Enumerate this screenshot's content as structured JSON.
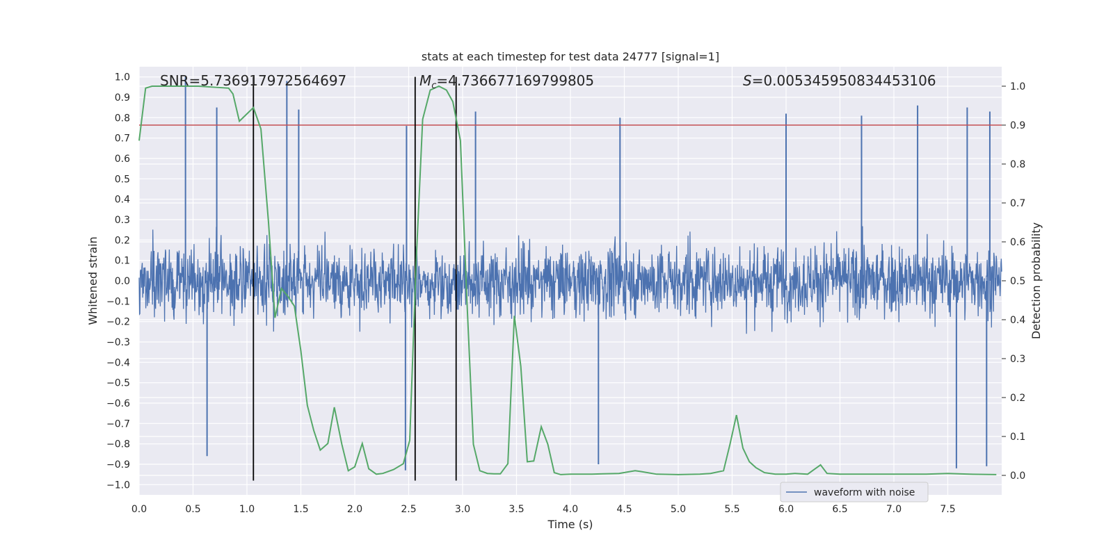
{
  "chart_data": {
    "type": "line",
    "title": "stats at each timestep for test data 24777 [signal=1]",
    "xlabel": "Time (s)",
    "ylabel": "Whitened strain",
    "ylabel_right": "Detection probability",
    "xlim": [
      0.0,
      8.0
    ],
    "ylim": [
      -1.05,
      1.05
    ],
    "ylim_right": [
      -0.05,
      1.05
    ],
    "x_ticks": [
      0.0,
      0.5,
      1.0,
      1.5,
      2.0,
      2.5,
      3.0,
      3.5,
      4.0,
      4.5,
      5.0,
      5.5,
      6.0,
      6.5,
      7.0,
      7.5
    ],
    "x_tick_labels": [
      "0.0",
      "0.5",
      "1.0",
      "1.5",
      "2.0",
      "2.5",
      "3.0",
      "3.5",
      "4.0",
      "4.5",
      "5.0",
      "5.5",
      "6.0",
      "6.5",
      "7.0",
      "7.5"
    ],
    "y_ticks": [
      1.0,
      0.9,
      0.8,
      0.7,
      0.6,
      0.5,
      0.4,
      0.3,
      0.2,
      0.1,
      0.0,
      -0.1,
      -0.2,
      -0.3,
      -0.4,
      -0.5,
      -0.6,
      -0.7,
      -0.8,
      -0.9,
      -1.0
    ],
    "y_tick_labels": [
      "1.0",
      "0.9",
      "0.8",
      "0.7",
      "0.6",
      "0.5",
      "0.4",
      "0.3",
      "0.2",
      "0.1",
      "0.0",
      "−0.1",
      "−0.2",
      "−0.3",
      "−0.4",
      "−0.5",
      "−0.6",
      "−0.7",
      "−0.8",
      "−0.9",
      "−1.0"
    ],
    "y_ticks_right": [
      1.0,
      0.9,
      0.8,
      0.7,
      0.6,
      0.5,
      0.4,
      0.3,
      0.2,
      0.1,
      0.0
    ],
    "y_tick_labels_right": [
      "1.0",
      "0.9",
      "0.8",
      "0.7",
      "0.6",
      "0.5",
      "0.4",
      "0.3",
      "0.2",
      "0.1",
      "0.0"
    ],
    "grid": true,
    "legend_position": "bottom-right",
    "annotations": {
      "snr": "SNR=5.736917972564697",
      "mc_symbol": "M",
      "mc_subscript": "c",
      "mc_value": "=4.736677169799805",
      "s_symbol": "S",
      "s_value": "=0.005345950834453106"
    },
    "vertical_lines_x": [
      1.06,
      2.56,
      2.94
    ],
    "threshold_right": 0.9,
    "series": [
      {
        "name": "waveform with noise",
        "color": "#4c72b0",
        "note_kind": "dense noise waveform",
        "envelope_peaks": [
          {
            "x": 0.43,
            "y": 1.0
          },
          {
            "x": 0.72,
            "y": 0.85
          },
          {
            "x": 1.37,
            "y": 0.98
          },
          {
            "x": 1.48,
            "y": 0.84
          },
          {
            "x": 2.48,
            "y": 0.76
          },
          {
            "x": 3.12,
            "y": 0.83
          },
          {
            "x": 4.46,
            "y": 0.8
          },
          {
            "x": 6.0,
            "y": 0.82
          },
          {
            "x": 6.7,
            "y": 0.81
          },
          {
            "x": 7.22,
            "y": 0.86
          },
          {
            "x": 7.68,
            "y": 0.85
          },
          {
            "x": 7.89,
            "y": 0.83
          },
          {
            "x": 0.63,
            "y": -0.86
          },
          {
            "x": 2.47,
            "y": -0.93
          },
          {
            "x": 4.26,
            "y": -0.9
          },
          {
            "x": 7.58,
            "y": -0.92
          },
          {
            "x": 7.86,
            "y": -0.91
          }
        ]
      },
      {
        "name": "",
        "color": "#55a868",
        "axis": "right",
        "x": [
          0.0,
          0.06,
          0.12,
          0.3,
          0.55,
          0.83,
          0.87,
          0.93,
          1.06,
          1.13,
          1.2,
          1.26,
          1.32,
          1.38,
          1.44,
          1.5,
          1.56,
          1.62,
          1.68,
          1.75,
          1.81,
          1.88,
          1.94,
          2.0,
          2.07,
          2.13,
          2.2,
          2.26,
          2.36,
          2.45,
          2.51,
          2.57,
          2.63,
          2.7,
          2.78,
          2.85,
          2.91,
          2.98,
          3.04,
          3.1,
          3.16,
          3.23,
          3.29,
          3.35,
          3.42,
          3.48,
          3.54,
          3.6,
          3.66,
          3.73,
          3.79,
          3.85,
          3.91,
          4.0,
          4.2,
          4.3,
          4.45,
          4.6,
          4.65,
          4.8,
          5.0,
          5.2,
          5.3,
          5.42,
          5.48,
          5.54,
          5.6,
          5.66,
          5.72,
          5.8,
          5.9,
          6.0,
          6.08,
          6.14,
          6.2,
          6.26,
          6.32,
          6.38,
          6.5,
          6.7,
          7.0,
          7.3,
          7.5,
          7.7,
          7.95
        ],
        "y": [
          0.86,
          0.995,
          1.0,
          1.0,
          1.0,
          0.995,
          0.98,
          0.91,
          0.945,
          0.89,
          0.65,
          0.405,
          0.48,
          0.46,
          0.435,
          0.32,
          0.18,
          0.115,
          0.065,
          0.082,
          0.175,
          0.08,
          0.012,
          0.022,
          0.082,
          0.017,
          0.003,
          0.005,
          0.015,
          0.03,
          0.09,
          0.55,
          0.915,
          0.99,
          1.0,
          0.99,
          0.96,
          0.86,
          0.45,
          0.08,
          0.012,
          0.005,
          0.004,
          0.004,
          0.03,
          0.41,
          0.28,
          0.035,
          0.037,
          0.125,
          0.08,
          0.007,
          0.002,
          0.003,
          0.003,
          0.004,
          0.005,
          0.012,
          0.01,
          0.003,
          0.002,
          0.003,
          0.005,
          0.012,
          0.08,
          0.155,
          0.07,
          0.035,
          0.02,
          0.007,
          0.003,
          0.003,
          0.005,
          0.004,
          0.003,
          0.015,
          0.027,
          0.005,
          0.003,
          0.003,
          0.003,
          0.003,
          0.005,
          0.003,
          0.002
        ]
      },
      {
        "name": "",
        "color": "#c44e52",
        "axis": "right",
        "x": [
          0.0,
          8.0
        ],
        "y": [
          0.9,
          0.9
        ]
      }
    ]
  }
}
